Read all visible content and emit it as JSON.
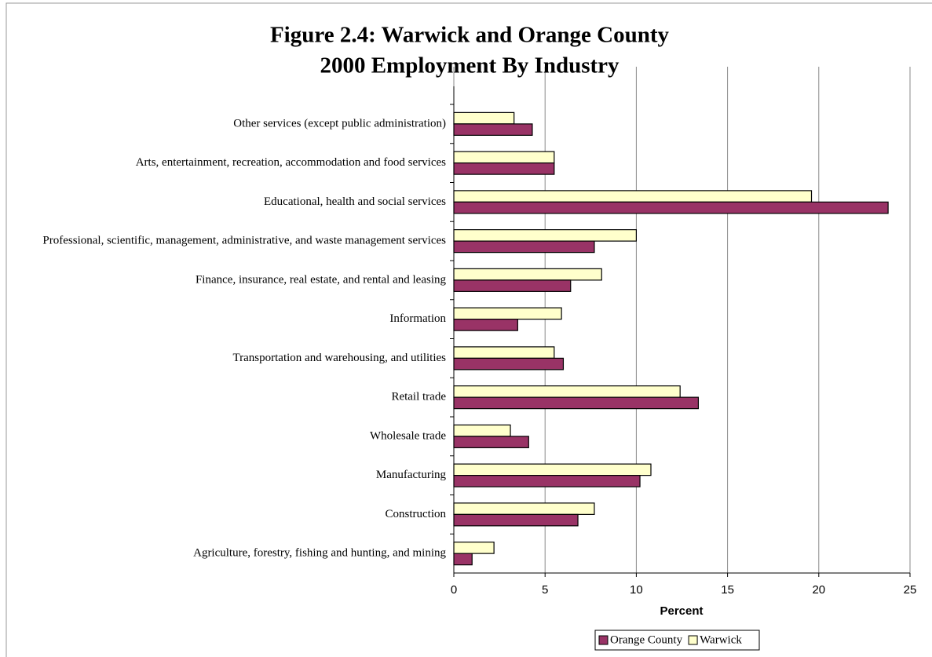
{
  "chart_data": {
    "type": "bar",
    "orientation": "horizontal",
    "title": "Figure 2.4:  Warwick and Orange County",
    "subtitle": "2000 Employment By Industry",
    "x_label": "Percent",
    "categories": [
      "Other services (except public administration)",
      "Arts, entertainment, recreation, accommodation and food services",
      "Educational, health and social services",
      "Professional, scientific, management, administrative, and waste management services",
      "Finance, insurance, real estate, and rental and leasing",
      "Information",
      "Transportation and warehousing, and utilities",
      "Retail trade",
      "Wholesale trade",
      "Manufacturing",
      "Construction",
      "Agriculture, forestry, fishing and hunting, and mining"
    ],
    "series": [
      {
        "name": "Orange County",
        "color": "#993366",
        "values": [
          4.3,
          5.5,
          23.8,
          7.7,
          6.4,
          3.5,
          6.0,
          13.4,
          4.1,
          10.2,
          6.8,
          1.0
        ]
      },
      {
        "name": "Warwick",
        "color": "#ffffcc",
        "values": [
          3.3,
          5.5,
          19.6,
          10.0,
          8.1,
          5.9,
          5.5,
          12.4,
          3.1,
          10.8,
          7.7,
          2.2
        ]
      }
    ],
    "xlim": [
      0,
      25
    ],
    "xticks": [
      0,
      5,
      10,
      15,
      20,
      25
    ],
    "grid": true,
    "legend": "bottom"
  }
}
